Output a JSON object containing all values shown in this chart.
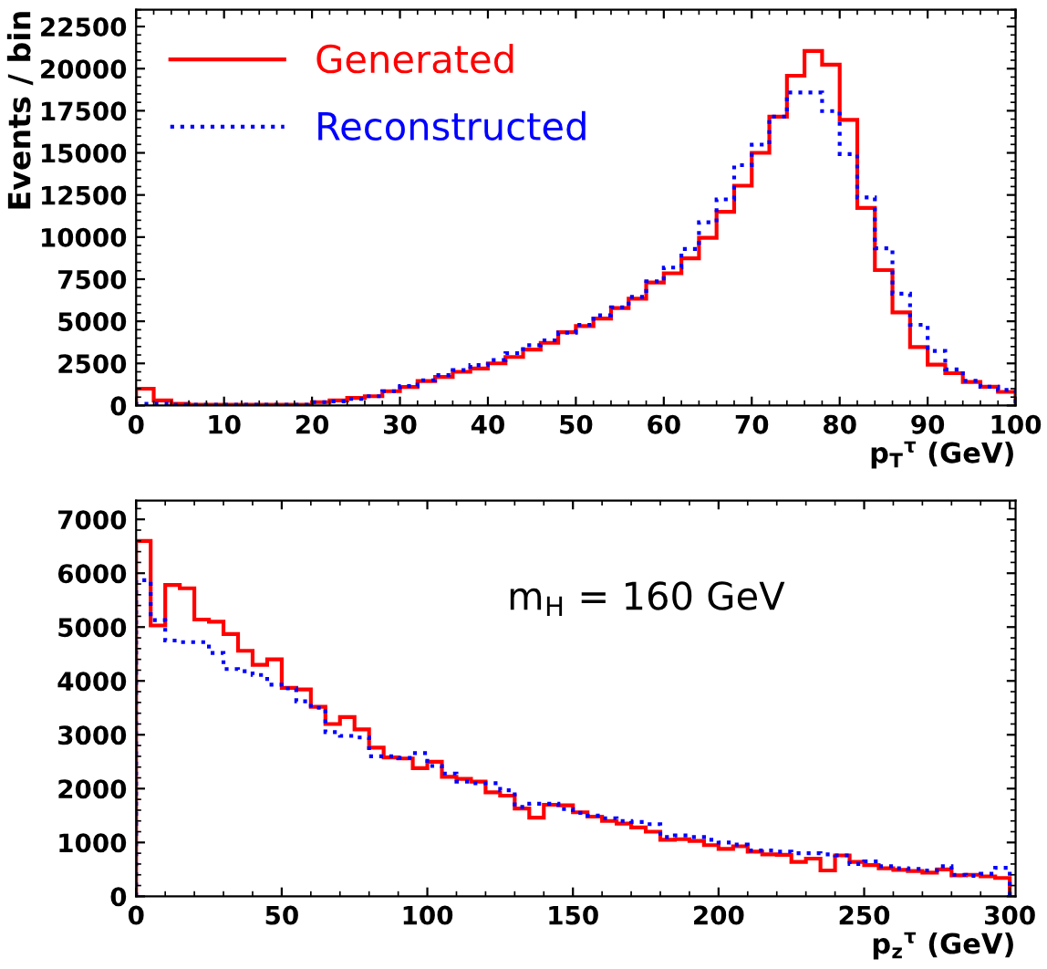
{
  "chart_data": [
    {
      "type": "histogram",
      "ylabel": "Events / bin",
      "xlabel": "p$_{T}$$^{τ}$ (GeV)",
      "legend": "top left",
      "grid": false,
      "bins": [
        0,
        2,
        4,
        6,
        8,
        10,
        12,
        14,
        16,
        18,
        20,
        22,
        24,
        26,
        28,
        30,
        32,
        34,
        36,
        38,
        40,
        42,
        44,
        46,
        48,
        50,
        52,
        54,
        56,
        58,
        60,
        62,
        64,
        66,
        68,
        70,
        72,
        74,
        76,
        78,
        80,
        82,
        84,
        86,
        88,
        90,
        92,
        94,
        96,
        98,
        100
      ],
      "xlim": [
        0,
        100
      ],
      "xticks": [
        0,
        10,
        20,
        30,
        40,
        50,
        60,
        70,
        80,
        90,
        100
      ],
      "ylim": [
        0,
        23500
      ],
      "yticks": [
        0,
        2500,
        5000,
        7500,
        10000,
        12500,
        15000,
        17500,
        20000,
        22500
      ],
      "series": [
        {
          "name": "Generated",
          "color": "#ff0000",
          "line_style": "solid",
          "values": [
            1000,
            300,
            100,
            50,
            50,
            50,
            50,
            50,
            50,
            50,
            200,
            300,
            450,
            550,
            850,
            1100,
            1450,
            1700,
            2000,
            2200,
            2500,
            2880,
            3320,
            3720,
            4350,
            4720,
            5160,
            5790,
            6340,
            7300,
            7850,
            8740,
            9960,
            11500,
            13050,
            15000,
            17150,
            19580,
            21050,
            20240,
            16960,
            11730,
            8040,
            5530,
            3470,
            2430,
            1920,
            1400,
            1110,
            810
          ]
        },
        {
          "name": "Reconstructed",
          "color": "#0000ff",
          "line_style": "dotted",
          "values": [
            100,
            100,
            50,
            50,
            50,
            50,
            50,
            50,
            50,
            50,
            200,
            250,
            400,
            550,
            850,
            1150,
            1500,
            1800,
            2100,
            2400,
            2700,
            3100,
            3580,
            3870,
            4320,
            4790,
            5350,
            5830,
            6450,
            7370,
            8190,
            9290,
            10880,
            12240,
            14270,
            15490,
            17150,
            18580,
            18580,
            17480,
            14930,
            12350,
            9330,
            6640,
            4790,
            3240,
            2140,
            1470,
            1110,
            920
          ]
        }
      ]
    },
    {
      "type": "histogram",
      "xlabel": "p$_{z}$$^{τ}$ (GeV)",
      "grid": false,
      "annotations": [
        "m$_{H}$ = 160 GeV"
      ],
      "bins": [
        0,
        5,
        10,
        15,
        20,
        25,
        30,
        35,
        40,
        45,
        50,
        55,
        60,
        65,
        70,
        75,
        80,
        85,
        90,
        95,
        100,
        105,
        110,
        115,
        120,
        125,
        130,
        135,
        140,
        145,
        150,
        155,
        160,
        165,
        170,
        175,
        180,
        185,
        190,
        195,
        200,
        205,
        210,
        215,
        220,
        225,
        230,
        235,
        240,
        245,
        250,
        255,
        260,
        265,
        270,
        275,
        280,
        285,
        290,
        295,
        300
      ],
      "xlim": [
        0,
        302
      ],
      "xticks": [
        0,
        50,
        100,
        150,
        200,
        250,
        300
      ],
      "ylim": [
        0,
        7350
      ],
      "yticks": [
        0,
        1000,
        2000,
        3000,
        4000,
        5000,
        6000,
        7000
      ],
      "series": [
        {
          "color": "#ff0000",
          "line_style": "solid",
          "values": [
            6600,
            5030,
            5780,
            5720,
            5140,
            5100,
            4870,
            4560,
            4300,
            4400,
            3870,
            3840,
            3520,
            3200,
            3330,
            3100,
            2760,
            2580,
            2560,
            2380,
            2500,
            2220,
            2180,
            2130,
            1930,
            1870,
            1630,
            1460,
            1700,
            1690,
            1560,
            1480,
            1400,
            1350,
            1280,
            1200,
            1050,
            1060,
            1030,
            950,
            880,
            930,
            830,
            780,
            770,
            640,
            700,
            480,
            760,
            640,
            580,
            520,
            490,
            470,
            440,
            500,
            390,
            400,
            370,
            340
          ]
        },
        {
          "color": "#0000ff",
          "line_style": "dotted",
          "values": [
            5870,
            5130,
            4750,
            4720,
            4720,
            4520,
            4220,
            4180,
            4110,
            3930,
            3860,
            3620,
            3500,
            3050,
            2980,
            2950,
            2600,
            2600,
            2570,
            2660,
            2420,
            2280,
            2130,
            2100,
            2100,
            1970,
            1660,
            1720,
            1720,
            1620,
            1550,
            1500,
            1450,
            1400,
            1380,
            1340,
            1100,
            1130,
            1100,
            1050,
            1000,
            960,
            850,
            850,
            830,
            800,
            800,
            780,
            760,
            600,
            650,
            560,
            520,
            510,
            480,
            560,
            400,
            380,
            420,
            530
          ]
        }
      ]
    }
  ]
}
